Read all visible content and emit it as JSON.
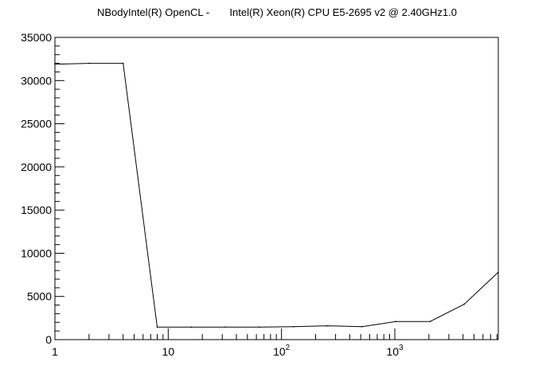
{
  "chart_data": {
    "type": "line",
    "title": "NBodyIntel(R) OpenCL -       Intel(R) Xeon(R) CPU E5-2695 v2 @ 2.40GHz1.0",
    "xlabel": "",
    "ylabel": "",
    "xscale": "log",
    "xlim": [
      1,
      8192
    ],
    "ylim": [
      0,
      35000
    ],
    "grid": false,
    "y_ticks": [
      "0",
      "5000",
      "10000",
      "15000",
      "20000",
      "25000",
      "30000",
      "35000"
    ],
    "x_ticks": [
      {
        "base": "1",
        "exp": ""
      },
      {
        "base": "10",
        "exp": ""
      },
      {
        "base": "10",
        "exp": "2"
      },
      {
        "base": "10",
        "exp": "3"
      }
    ],
    "series": [
      {
        "x": [
          1,
          2,
          4,
          8,
          16,
          32,
          64,
          128,
          256,
          512,
          1024,
          2048,
          4096,
          8192
        ],
        "y": [
          31900,
          32000,
          32000,
          1450,
          1450,
          1450,
          1450,
          1500,
          1600,
          1500,
          2100,
          2100,
          4100,
          7800
        ]
      }
    ],
    "colors": {
      "line": "#000000",
      "axis": "#000000"
    }
  }
}
